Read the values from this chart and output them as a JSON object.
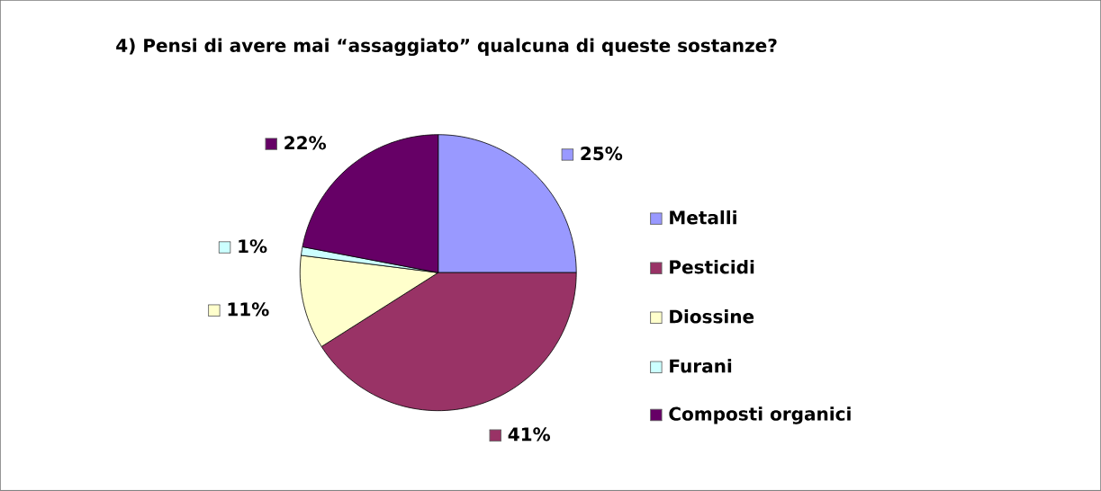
{
  "chart_data": {
    "type": "pie",
    "title": "4) Pensi di avere mai “assaggiato” qualcuna di queste sostanze?",
    "categories": [
      "Metalli",
      "Pesticidi",
      "Diossine",
      "Furani",
      "Composti organici"
    ],
    "values": [
      25,
      41,
      11,
      1,
      22
    ],
    "colors": [
      "#9999ff",
      "#993366",
      "#ffffcc",
      "#ccffff",
      "#660066"
    ],
    "value_labels": [
      "25%",
      "41%",
      "11%",
      "1%",
      "22%"
    ],
    "legend": "right"
  }
}
